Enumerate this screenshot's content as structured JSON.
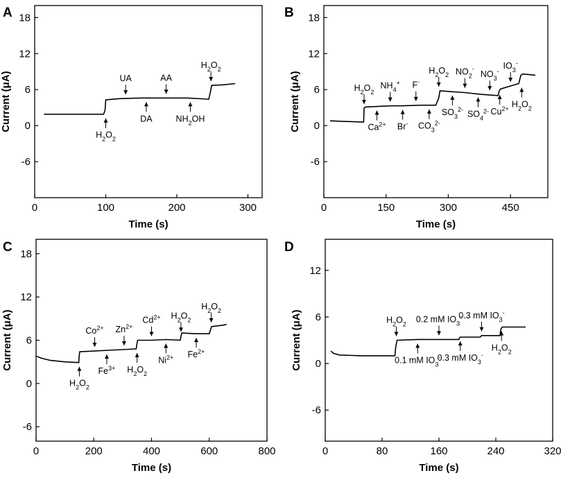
{
  "chart_data": [
    {
      "panel": "A",
      "type": "line",
      "xlabel": "Time (s)",
      "ylabel": "Current (μA)",
      "xlim": [
        0,
        320
      ],
      "ylim": [
        -12,
        20
      ],
      "xticks": [
        0,
        100,
        200,
        300
      ],
      "yticks": [
        -6,
        0,
        6,
        12,
        18
      ],
      "series": [
        {
          "name": "Current",
          "x": [
            13,
            40,
            70,
            97,
            99,
            100,
            120,
            150,
            185,
            215,
            245,
            247,
            249,
            265,
            282
          ],
          "y": [
            1.9,
            1.9,
            1.9,
            1.9,
            2.6,
            4.3,
            4.5,
            4.6,
            4.6,
            4.6,
            4.4,
            5.5,
            6.7,
            6.8,
            7.0
          ]
        }
      ],
      "annotations": [
        {
          "text": "H2O2",
          "parts": [
            [
              "H",
              ""
            ],
            [
              "2",
              "sub"
            ],
            [
              "O",
              ""
            ],
            [
              "2",
              "sub"
            ]
          ],
          "x": 100,
          "y": 1.9,
          "position": "below"
        },
        {
          "text": "UA",
          "parts": [
            [
              "UA",
              ""
            ]
          ],
          "x": 128,
          "y": 4.5,
          "position": "above"
        },
        {
          "text": "DA",
          "parts": [
            [
              "DA",
              ""
            ]
          ],
          "x": 157,
          "y": 4.6,
          "position": "below"
        },
        {
          "text": "AA",
          "parts": [
            [
              "AA",
              ""
            ]
          ],
          "x": 185,
          "y": 4.6,
          "position": "above"
        },
        {
          "text": "NH2OH",
          "parts": [
            [
              "NH",
              ""
            ],
            [
              "2",
              "sub"
            ],
            [
              "OH",
              ""
            ]
          ],
          "x": 219,
          "y": 4.6,
          "position": "below"
        },
        {
          "text": "H2O2",
          "parts": [
            [
              "H",
              ""
            ],
            [
              "2",
              "sub"
            ],
            [
              "O",
              ""
            ],
            [
              "2",
              "sub"
            ]
          ],
          "x": 248,
          "y": 6.7,
          "position": "above"
        }
      ]
    },
    {
      "panel": "B",
      "type": "line",
      "xlabel": "Time (s)",
      "ylabel": "Current (μA)",
      "xlim": [
        0,
        540
      ],
      "ylim": [
        -12,
        20
      ],
      "xticks": [
        0,
        150,
        300,
        450
      ],
      "yticks": [
        -6,
        0,
        6,
        12,
        18
      ],
      "series": [
        {
          "name": "Current",
          "x": [
            15,
            50,
            96,
            97,
            100,
            130,
            160,
            190,
            230,
            270,
            277,
            280,
            300,
            340,
            380,
            420,
            423,
            426,
            450,
            470,
            475,
            480,
            510
          ],
          "y": [
            0.8,
            0.7,
            0.6,
            2.9,
            3.1,
            3.2,
            3.3,
            3.3,
            3.4,
            3.4,
            4.6,
            5.8,
            5.7,
            5.5,
            5.2,
            5.0,
            5.8,
            6.1,
            6.6,
            7.0,
            8.4,
            8.6,
            8.4
          ]
        }
      ],
      "annotations": [
        {
          "text": "H2O2",
          "parts": [
            [
              "H",
              ""
            ],
            [
              "2",
              "sub"
            ],
            [
              "O",
              ""
            ],
            [
              "2",
              "sub"
            ]
          ],
          "x": 97,
          "y": 2.9,
          "position": "above"
        },
        {
          "text": "Ca2+",
          "parts": [
            [
              "Ca",
              ""
            ],
            [
              "2+",
              "sup"
            ]
          ],
          "x": 128,
          "y": 3.2,
          "position": "below"
        },
        {
          "text": "NH4+",
          "parts": [
            [
              "NH",
              ""
            ],
            [
              "4",
              "sub"
            ],
            [
              "+",
              "sup"
            ]
          ],
          "x": 160,
          "y": 3.3,
          "position": "above"
        },
        {
          "text": "Br-",
          "parts": [
            [
              "Br",
              ""
            ],
            [
              "-",
              "sup"
            ]
          ],
          "x": 190,
          "y": 3.3,
          "position": "below"
        },
        {
          "text": "F-",
          "parts": [
            [
              "F",
              ""
            ],
            [
              "-",
              "sup"
            ]
          ],
          "x": 222,
          "y": 3.4,
          "position": "above"
        },
        {
          "text": "CO32-",
          "parts": [
            [
              "CO",
              ""
            ],
            [
              "3",
              "sub"
            ],
            [
              "2-",
              "sup"
            ]
          ],
          "x": 254,
          "y": 3.4,
          "position": "below"
        },
        {
          "text": "H2O2",
          "parts": [
            [
              "H",
              ""
            ],
            [
              "2",
              "sub"
            ],
            [
              "O",
              ""
            ],
            [
              "2",
              "sub"
            ]
          ],
          "x": 277,
          "y": 5.8,
          "position": "above"
        },
        {
          "text": "SO32-",
          "parts": [
            [
              "SO",
              ""
            ],
            [
              "3",
              "sub"
            ],
            [
              "2-",
              "sup"
            ]
          ],
          "x": 310,
          "y": 5.7,
          "position": "below"
        },
        {
          "text": "NO2-",
          "parts": [
            [
              "NO",
              ""
            ],
            [
              "2",
              "sub"
            ],
            [
              "-",
              "sup"
            ]
          ],
          "x": 340,
          "y": 5.6,
          "position": "above"
        },
        {
          "text": "SO42-",
          "parts": [
            [
              "SO",
              ""
            ],
            [
              "4",
              "sub"
            ],
            [
              "2-",
              "sup"
            ]
          ],
          "x": 372,
          "y": 5.4,
          "position": "below"
        },
        {
          "text": "NO3-",
          "parts": [
            [
              "NO",
              ""
            ],
            [
              "3",
              "sub"
            ],
            [
              "-",
              "sup"
            ]
          ],
          "x": 400,
          "y": 5.2,
          "position": "above"
        },
        {
          "text": "Cu2+",
          "parts": [
            [
              "Cu",
              ""
            ],
            [
              "2+",
              "sup"
            ]
          ],
          "x": 424,
          "y": 5.8,
          "position": "below"
        },
        {
          "text": "IO3-",
          "parts": [
            [
              "IO",
              ""
            ],
            [
              "3",
              "sub"
            ],
            [
              "-",
              "sup"
            ]
          ],
          "x": 450,
          "y": 6.6,
          "position": "above"
        },
        {
          "text": "H2O2",
          "parts": [
            [
              "H",
              ""
            ],
            [
              "2",
              "sub"
            ],
            [
              "O",
              ""
            ],
            [
              "2",
              "sub"
            ]
          ],
          "x": 477,
          "y": 7.0,
          "position": "below"
        }
      ]
    },
    {
      "panel": "C",
      "type": "line",
      "xlabel": "Time (s)",
      "ylabel": "Current (μA)",
      "xlim": [
        0,
        800
      ],
      "ylim": [
        -8,
        20
      ],
      "xticks": [
        0,
        200,
        400,
        600,
        800
      ],
      "yticks": [
        -6,
        0,
        6,
        12,
        18
      ],
      "series": [
        {
          "name": "Current",
          "x": [
            0,
            20,
            50,
            100,
            148,
            149,
            151,
            200,
            250,
            300,
            347,
            349,
            352,
            400,
            450,
            500,
            502,
            505,
            550,
            600,
            605,
            608,
            650,
            660
          ],
          "y": [
            3.8,
            3.5,
            3.2,
            3.0,
            2.9,
            3.6,
            4.4,
            4.5,
            4.6,
            4.7,
            4.8,
            5.4,
            6.0,
            6.0,
            6.1,
            6.0,
            6.6,
            7.0,
            6.9,
            6.9,
            7.5,
            7.9,
            8.1,
            8.2
          ]
        }
      ],
      "annotations": [
        {
          "text": "H2O2",
          "parts": [
            [
              "H",
              ""
            ],
            [
              "2",
              "sub"
            ],
            [
              "O",
              ""
            ],
            [
              "2",
              "sub"
            ]
          ],
          "x": 150,
          "y": 2.9,
          "position": "below"
        },
        {
          "text": "Co2+",
          "parts": [
            [
              "Co",
              ""
            ],
            [
              "2+",
              "sup"
            ]
          ],
          "x": 203,
          "y": 4.5,
          "position": "above"
        },
        {
          "text": "Fe3+",
          "parts": [
            [
              "Fe",
              ""
            ],
            [
              "3+",
              "sup"
            ]
          ],
          "x": 245,
          "y": 4.6,
          "position": "below"
        },
        {
          "text": "Zn2+",
          "parts": [
            [
              "Zn",
              ""
            ],
            [
              "2+",
              "sup"
            ]
          ],
          "x": 305,
          "y": 4.7,
          "position": "above"
        },
        {
          "text": "H2O2",
          "parts": [
            [
              "H",
              ""
            ],
            [
              "2",
              "sub"
            ],
            [
              "O",
              ""
            ],
            [
              "2",
              "sub"
            ]
          ],
          "x": 350,
          "y": 4.8,
          "position": "below"
        },
        {
          "text": "Cd2+",
          "parts": [
            [
              "Cd",
              ""
            ],
            [
              "2+",
              "sup"
            ]
          ],
          "x": 400,
          "y": 6.0,
          "position": "above"
        },
        {
          "text": "Ni2+",
          "parts": [
            [
              "Ni",
              ""
            ],
            [
              "2+",
              "sup"
            ]
          ],
          "x": 450,
          "y": 6.1,
          "position": "below"
        },
        {
          "text": "H2O2",
          "parts": [
            [
              "H",
              ""
            ],
            [
              "2",
              "sub"
            ],
            [
              "O",
              ""
            ],
            [
              "2",
              "sub"
            ]
          ],
          "x": 502,
          "y": 6.6,
          "position": "above"
        },
        {
          "text": "Fe2+",
          "parts": [
            [
              "Fe",
              ""
            ],
            [
              "2+",
              "sup"
            ]
          ],
          "x": 555,
          "y": 6.9,
          "position": "below"
        },
        {
          "text": "H2O2",
          "parts": [
            [
              "H",
              ""
            ],
            [
              "2",
              "sub"
            ],
            [
              "O",
              ""
            ],
            [
              "2",
              "sub"
            ]
          ],
          "x": 607,
          "y": 7.9,
          "position": "above"
        }
      ]
    },
    {
      "panel": "D",
      "type": "line",
      "xlabel": "Time (s)",
      "ylabel": "Current (μA)",
      "xlim": [
        0,
        320
      ],
      "ylim": [
        -10,
        16
      ],
      "xticks": [
        0,
        80,
        160,
        240,
        320
      ],
      "yticks": [
        -6,
        0,
        6,
        12
      ],
      "series": [
        {
          "name": "Current",
          "x": [
            8,
            12,
            20,
            50,
            98,
            99,
            101,
            130,
            160,
            188,
            189,
            190,
            218,
            219,
            220,
            246,
            247,
            249,
            265,
            282
          ],
          "y": [
            1.6,
            1.3,
            1.1,
            1.0,
            1.0,
            2.0,
            3.0,
            3.1,
            3.1,
            3.1,
            3.3,
            3.4,
            3.4,
            3.5,
            3.6,
            3.6,
            4.4,
            4.7,
            4.7,
            4.7
          ]
        }
      ],
      "annotations": [
        {
          "text": "H2O2",
          "parts": [
            [
              "H",
              ""
            ],
            [
              "2",
              "sub"
            ],
            [
              "O",
              ""
            ],
            [
              "2",
              "sub"
            ]
          ],
          "x": 100,
          "y": 3.0,
          "position": "above"
        },
        {
          "text": "0.1 mM IO3-",
          "parts": [
            [
              "0.1 mM IO",
              ""
            ],
            [
              "3",
              "sub"
            ],
            [
              "-",
              "sup"
            ]
          ],
          "x": 130,
          "y": 3.1,
          "position": "below"
        },
        {
          "text": "0.2 mM IO3-",
          "parts": [
            [
              "0.2 mM IO",
              ""
            ],
            [
              "3",
              "sub"
            ],
            [
              "-",
              "sup"
            ]
          ],
          "x": 160,
          "y": 3.1,
          "position": "above"
        },
        {
          "text": "0.3 mM IO3-",
          "parts": [
            [
              "0.3 mM IO",
              ""
            ],
            [
              "3",
              "sub"
            ],
            [
              "-",
              "sup"
            ]
          ],
          "x": 190,
          "y": 3.4,
          "position": "below"
        },
        {
          "text": "0.3 mM IO3-",
          "parts": [
            [
              "0.3 mM IO",
              ""
            ],
            [
              "3",
              "sub"
            ],
            [
              "-",
              "sup"
            ]
          ],
          "x": 220,
          "y": 3.6,
          "position": "above"
        },
        {
          "text": "H2O2",
          "parts": [
            [
              "H",
              ""
            ],
            [
              "2",
              "sub"
            ],
            [
              "O",
              ""
            ],
            [
              "2",
              "sub"
            ]
          ],
          "x": 248,
          "y": 4.7,
          "position": "below"
        }
      ]
    }
  ]
}
